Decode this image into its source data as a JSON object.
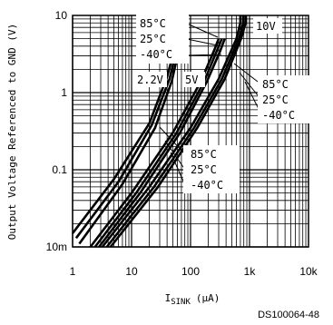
{
  "chart_data": {
    "type": "line",
    "ylabel": "Output Voltage Referenced to GND (V)",
    "xlabel_main": "I",
    "xlabel_sub": "SINK",
    "xlabel_unit": "(μA)",
    "xscale": "log",
    "yscale": "log",
    "xlim": [
      1,
      10000
    ],
    "ylim": [
      0.01,
      10
    ],
    "grid": true,
    "x_ticks": [
      {
        "value": 1,
        "label": "1"
      },
      {
        "value": 10,
        "label": "10"
      },
      {
        "value": 100,
        "label": "100"
      },
      {
        "value": 1000,
        "label": "1k"
      },
      {
        "value": 10000,
        "label": "10k"
      }
    ],
    "y_ticks": [
      {
        "value": 0.01,
        "label": "10m"
      },
      {
        "value": 0.1,
        "label": "0.1"
      },
      {
        "value": 1,
        "label": "1"
      },
      {
        "value": 10,
        "label": "10"
      }
    ],
    "series": [
      {
        "name": "2.2V 85°C",
        "x": [
          1,
          5,
          20,
          40,
          50,
          55,
          55
        ],
        "y": [
          0.015,
          0.075,
          0.4,
          1.6,
          3.0,
          5.0,
          6.0
        ]
      },
      {
        "name": "2.2V 25°C",
        "x": [
          1.15,
          6,
          22,
          44,
          55,
          60,
          60
        ],
        "y": [
          0.013,
          0.07,
          0.38,
          1.5,
          3.0,
          5.0,
          6.0
        ]
      },
      {
        "name": "2.2V -40°C",
        "x": [
          1.3,
          7,
          25,
          48,
          60,
          66,
          66
        ],
        "y": [
          0.011,
          0.065,
          0.35,
          1.4,
          3.0,
          5.0,
          6.0
        ]
      },
      {
        "name": "5V 85°C",
        "x": [
          2,
          10,
          50,
          150,
          250,
          300,
          300
        ],
        "y": [
          0.01,
          0.05,
          0.3,
          1.4,
          3.5,
          5.0,
          5.0
        ]
      },
      {
        "name": "5V 25°C",
        "x": [
          2.4,
          12,
          58,
          170,
          280,
          340,
          340
        ],
        "y": [
          0.01,
          0.05,
          0.3,
          1.4,
          3.5,
          5.0,
          5.0
        ]
      },
      {
        "name": "5V -40°C",
        "x": [
          2.8,
          14,
          66,
          190,
          320,
          380,
          380
        ],
        "y": [
          0.01,
          0.05,
          0.3,
          1.4,
          3.5,
          5.0,
          5.0
        ]
      },
      {
        "name": "10V 85°C",
        "x": [
          3.2,
          20,
          100,
          300,
          600,
          700,
          700
        ],
        "y": [
          0.01,
          0.06,
          0.35,
          1.5,
          5.0,
          8.0,
          10
        ]
      },
      {
        "name": "10V 25°C",
        "x": [
          3.8,
          24,
          115,
          340,
          660,
          780,
          780
        ],
        "y": [
          0.01,
          0.06,
          0.35,
          1.5,
          5.0,
          8.0,
          10
        ]
      },
      {
        "name": "10V -40°C",
        "x": [
          4.4,
          28,
          130,
          380,
          720,
          860,
          860
        ],
        "y": [
          0.01,
          0.06,
          0.35,
          1.5,
          5.0,
          8.0,
          10
        ]
      }
    ],
    "annotations": [
      {
        "text": "85°C",
        "group": "top-left"
      },
      {
        "text": "25°C",
        "group": "top-left"
      },
      {
        "text": "-40°C",
        "group": "top-left"
      },
      {
        "text": "10V",
        "group": "supply"
      },
      {
        "text": "2.2V",
        "group": "supply"
      },
      {
        "text": "5V",
        "group": "supply"
      },
      {
        "text": "85°C",
        "group": "right"
      },
      {
        "text": "25°C",
        "group": "right"
      },
      {
        "text": "-40°C",
        "group": "right"
      },
      {
        "text": "85°C",
        "group": "bottom"
      },
      {
        "text": "25°C",
        "group": "bottom"
      },
      {
        "text": "-40°C",
        "group": "bottom"
      }
    ],
    "reference": "DS100064-48"
  }
}
